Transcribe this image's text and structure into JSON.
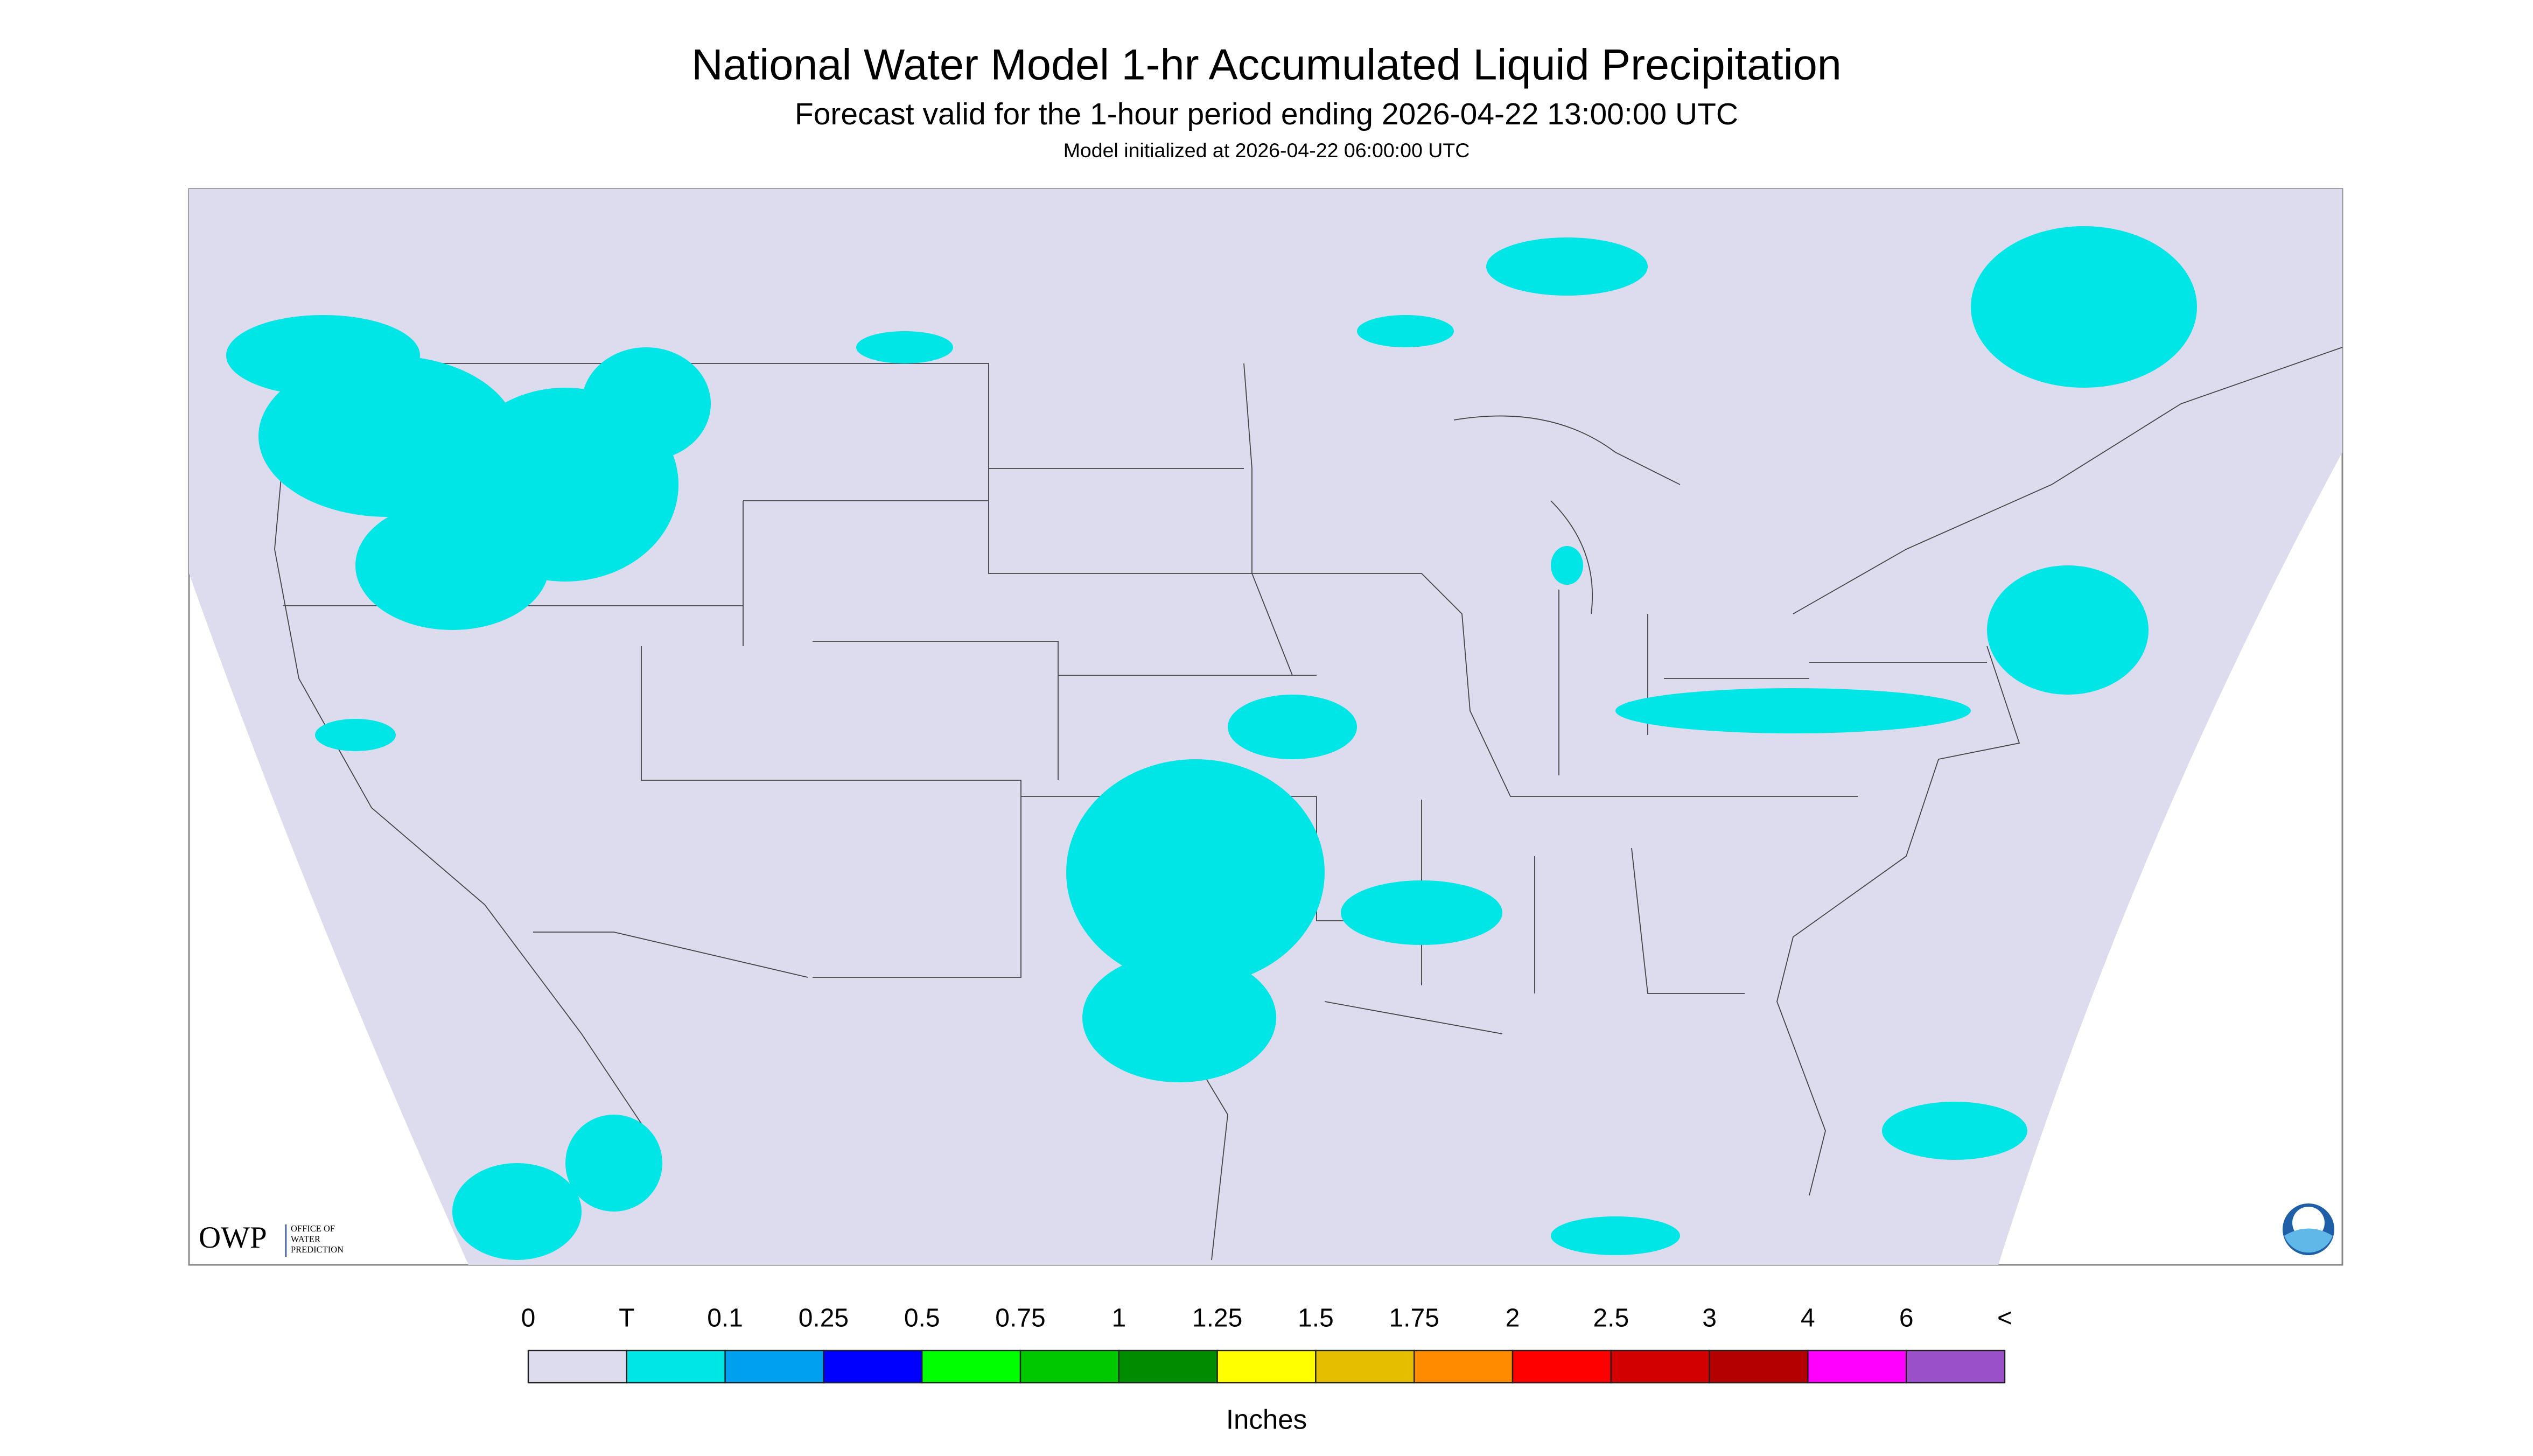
{
  "header": {
    "title": "National Water Model 1-hr Accumulated Liquid Precipitation",
    "subtitle": "Forecast valid for the 1-hour period ending 2026-04-22 13:00:00 UTC",
    "init": "Model initialized at 2026-04-22 06:00:00 UTC"
  },
  "logo": {
    "name": "OWP",
    "lines": [
      "OFFICE OF",
      "WATER",
      "PREDICTION"
    ]
  },
  "legend": {
    "labels": [
      "0",
      "T",
      "0.1",
      "0.25",
      "0.5",
      "0.75",
      "1",
      "1.25",
      "1.5",
      "1.75",
      "2",
      "2.5",
      "3",
      "4",
      "6",
      "<"
    ],
    "colors": [
      "#dcdcee",
      "#00e5e5",
      "#00a0f0",
      "#0000ff",
      "#00ff00",
      "#00c800",
      "#008c00",
      "#ffff00",
      "#e5be00",
      "#ff8c00",
      "#ff0000",
      "#d20000",
      "#b40000",
      "#ff00ff",
      "#9a50c8"
    ],
    "unit": "Inches"
  }
}
